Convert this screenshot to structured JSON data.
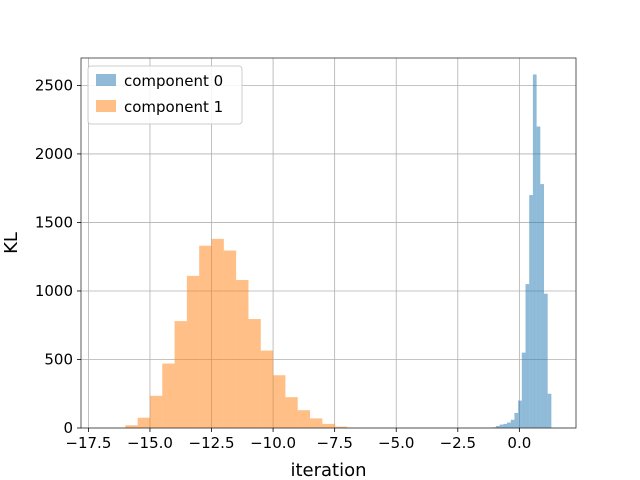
{
  "chart_data": {
    "type": "histogram",
    "title": "",
    "xlabel": "iteration",
    "ylabel": "KL",
    "xlim": [
      -17.8,
      2.3
    ],
    "ylim": [
      0,
      2700
    ],
    "x_ticks": [
      -17.5,
      -15.0,
      -12.5,
      -10.0,
      -7.5,
      -5.0,
      -2.5,
      0.0
    ],
    "x_tick_labels": [
      "−17.5",
      "−15.0",
      "−12.5",
      "−10.0",
      "−7.5",
      "−5.0",
      "−2.5",
      "0.0"
    ],
    "y_ticks": [
      0,
      500,
      1000,
      1500,
      2000,
      2500
    ],
    "y_tick_labels": [
      "0",
      "500",
      "1000",
      "1500",
      "2000",
      "2500"
    ],
    "grid": true,
    "legend": {
      "placement": "top-left",
      "entries": [
        "component 0",
        "component 1"
      ]
    },
    "series": [
      {
        "name": "component 0",
        "color": "#1f77b4",
        "alpha": 0.5,
        "bins": [
          [
            -1.1,
            -0.95,
            5
          ],
          [
            -0.95,
            -0.8,
            15
          ],
          [
            -0.8,
            -0.65,
            25
          ],
          [
            -0.65,
            -0.5,
            30
          ],
          [
            -0.5,
            -0.35,
            40
          ],
          [
            -0.35,
            -0.2,
            60
          ],
          [
            -0.2,
            -0.05,
            110
          ],
          [
            -0.05,
            0.1,
            200
          ],
          [
            0.1,
            0.25,
            550
          ],
          [
            0.25,
            0.4,
            1050
          ],
          [
            0.4,
            0.55,
            1700
          ],
          [
            0.55,
            0.7,
            2580
          ],
          [
            0.7,
            0.85,
            2200
          ],
          [
            0.85,
            1.0,
            1780
          ],
          [
            1.0,
            1.15,
            980
          ],
          [
            1.15,
            1.3,
            250
          ]
        ]
      },
      {
        "name": "component 1",
        "color": "#ff7f0e",
        "alpha": 0.5,
        "bins": [
          [
            -16.0,
            -15.5,
            20
          ],
          [
            -15.5,
            -15.0,
            75
          ],
          [
            -15.0,
            -14.5,
            235
          ],
          [
            -14.5,
            -14.0,
            470
          ],
          [
            -14.0,
            -13.5,
            780
          ],
          [
            -13.5,
            -13.0,
            1110
          ],
          [
            -13.0,
            -12.5,
            1330
          ],
          [
            -12.5,
            -12.0,
            1380
          ],
          [
            -12.0,
            -11.5,
            1295
          ],
          [
            -11.5,
            -11.0,
            1080
          ],
          [
            -11.0,
            -10.5,
            795
          ],
          [
            -10.5,
            -10.0,
            565
          ],
          [
            -10.0,
            -9.5,
            385
          ],
          [
            -9.5,
            -9.0,
            225
          ],
          [
            -9.0,
            -8.5,
            130
          ],
          [
            -8.5,
            -8.0,
            70
          ],
          [
            -8.0,
            -7.5,
            30
          ],
          [
            -7.5,
            -7.0,
            10
          ],
          [
            -7.0,
            -6.5,
            3
          ]
        ]
      }
    ]
  }
}
